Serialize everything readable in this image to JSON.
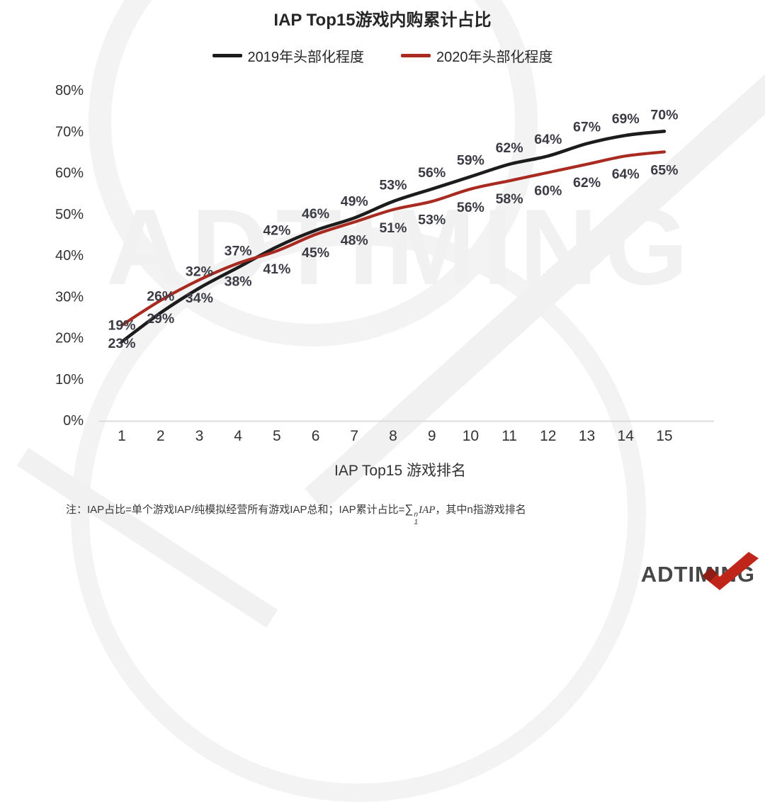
{
  "title": "IAP Top15游戏内购累计占比",
  "legend": {
    "items": [
      {
        "label": "2019年头部化程度",
        "color": "#1c1c1c"
      },
      {
        "label": "2020年头部化程度",
        "color": "#a82a20"
      }
    ]
  },
  "chart_data": {
    "type": "line",
    "title": "IAP Top15游戏内购累计占比",
    "categories": [
      1,
      2,
      3,
      4,
      5,
      6,
      7,
      8,
      9,
      10,
      11,
      12,
      13,
      14,
      15
    ],
    "series": [
      {
        "name": "2019年头部化程度",
        "color": "#1c1c1c",
        "label_position": "above",
        "values": [
          19,
          26,
          32,
          37,
          42,
          46,
          49,
          53,
          56,
          59,
          62,
          64,
          67,
          69,
          70
        ]
      },
      {
        "name": "2020年头部化程度",
        "color": "#a82a20",
        "label_position": "below",
        "values": [
          23,
          29,
          34,
          38,
          41,
          45,
          48,
          51,
          53,
          56,
          58,
          60,
          62,
          64,
          65
        ]
      }
    ],
    "xlabel": "IAP Top15 游戏排名",
    "ylabel": "",
    "ylim": [
      0,
      80
    ],
    "yticks": [
      "80%",
      "70%",
      "60%",
      "50%",
      "40%",
      "30%",
      "20%",
      "10%",
      "0%"
    ],
    "grid": false,
    "legend_position": "top",
    "data_labels": true,
    "label_color": "#3b3b45",
    "axis": {
      "line_color": "#d9d9d9",
      "tick_color": "#333333"
    }
  },
  "note": {
    "prefix": "注：IAP占比=单个游戏IAP/纯模拟经营所有游戏IAP总和；IAP累计占比=",
    "sigma": "∑",
    "sup": "n",
    "sub": "1",
    "term": "IAP",
    "suffix": "，其中n指游戏排名"
  },
  "watermark": {
    "text": "ADTIMING"
  },
  "logo": {
    "text": "ADTIMING"
  }
}
